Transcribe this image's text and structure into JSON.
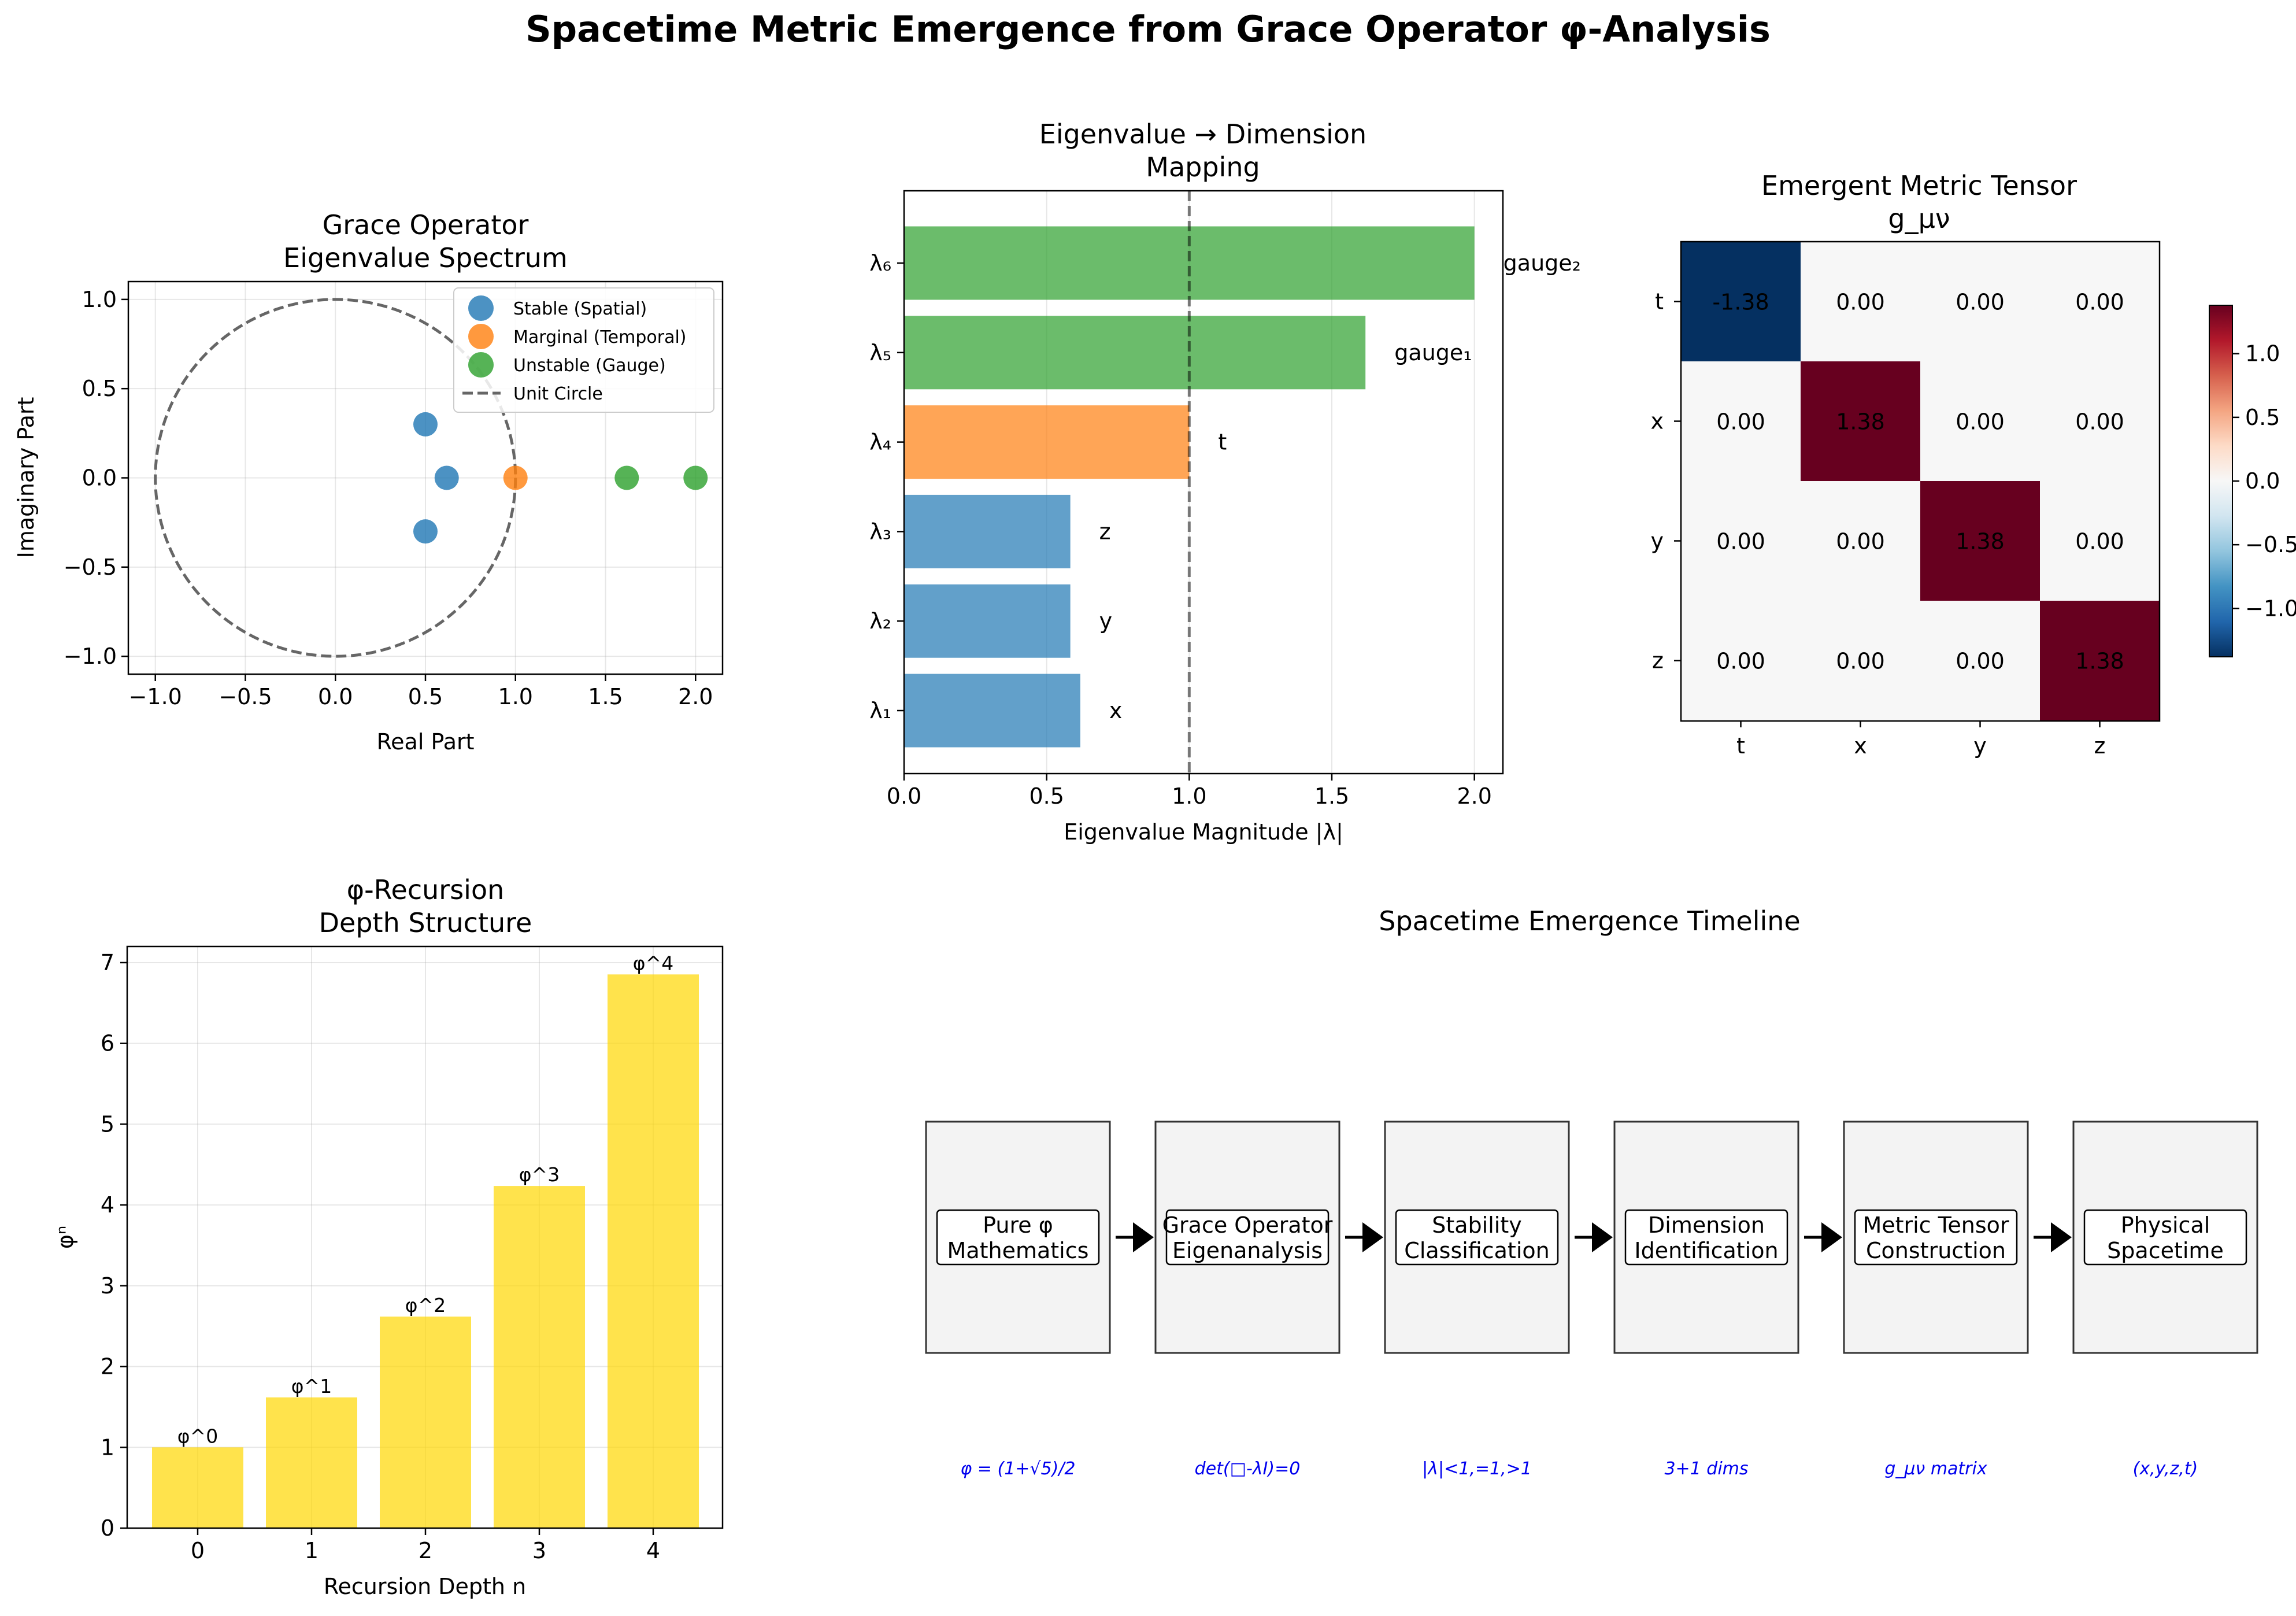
{
  "figure": {
    "title": "Spacetime Metric Emergence from Grace Operator φ-Analysis"
  },
  "chart_data": [
    {
      "type": "scatter",
      "title_lines": [
        "Grace Operator",
        "Eigenvalue Spectrum"
      ],
      "xlabel": "Real Part",
      "ylabel": "Imaginary Part",
      "xlim": [
        -1.15,
        2.15
      ],
      "ylim": [
        -1.1,
        1.1
      ],
      "xticks": [
        -1.0,
        -0.5,
        0.0,
        0.5,
        1.0,
        1.5,
        2.0
      ],
      "yticks": [
        -1.0,
        -0.5,
        0.0,
        0.5,
        1.0
      ],
      "tick_labels_x": [
        "−1.0",
        "−0.5",
        "0.0",
        "0.5",
        "1.0",
        "1.5",
        "2.0"
      ],
      "tick_labels_y": [
        "−1.0",
        "−0.5",
        "0.0",
        "0.5",
        "1.0"
      ],
      "grid": true,
      "legend_position": "top-right",
      "series": [
        {
          "name": "Stable (Spatial)",
          "color": "#1f77b4",
          "x": [
            0.5,
            0.618,
            0.5
          ],
          "y": [
            0.3,
            0.0,
            -0.3
          ]
        },
        {
          "name": "Marginal (Temporal)",
          "color": "#ff7f0e",
          "x": [
            1.0
          ],
          "y": [
            0.0
          ]
        },
        {
          "name": "Unstable (Gauge)",
          "color": "#2ca02c",
          "x": [
            1.618,
            2.0
          ],
          "y": [
            0.0,
            0.0
          ]
        }
      ],
      "reference_line": {
        "name": "Unit Circle",
        "shape": "circle",
        "radius": 1.0,
        "color": "#666666",
        "style": "dashed"
      }
    },
    {
      "type": "bar",
      "orientation": "horizontal",
      "title_lines": [
        "Eigenvalue → Dimension",
        "Mapping"
      ],
      "xlabel": "Eigenvalue Magnitude |λ|",
      "ylabel": "",
      "xlim": [
        0,
        2.1
      ],
      "xticks": [
        0.0,
        0.5,
        1.0,
        1.5,
        2.0
      ],
      "tick_labels_x": [
        "0.0",
        "0.5",
        "1.0",
        "1.5",
        "2.0"
      ],
      "grid": true,
      "categories": [
        "λ₁",
        "λ₂",
        "λ₃",
        "λ₄",
        "λ₅",
        "λ₆"
      ],
      "values": [
        0.618,
        0.583,
        0.583,
        1.0,
        1.618,
        2.0
      ],
      "bar_labels": [
        "x",
        "y",
        "z",
        "t",
        "gauge₁",
        "gauge₂"
      ],
      "colors": [
        "#1f77b4",
        "#1f77b4",
        "#1f77b4",
        "#ff7f0e",
        "#2ca02c",
        "#2ca02c"
      ],
      "reference_line": {
        "x": 1.0,
        "color": "#000000",
        "style": "dashed"
      }
    },
    {
      "type": "heatmap",
      "title_lines": [
        "Emergent Metric Tensor",
        "g_μν"
      ],
      "row_labels": [
        "t",
        "x",
        "y",
        "z"
      ],
      "col_labels": [
        "t",
        "x",
        "y",
        "z"
      ],
      "values": [
        [
          -1.38,
          0.0,
          0.0,
          0.0
        ],
        [
          0.0,
          1.38,
          0.0,
          0.0
        ],
        [
          0.0,
          0.0,
          1.38,
          0.0
        ],
        [
          0.0,
          0.0,
          0.0,
          1.38
        ]
      ],
      "cell_labels": [
        [
          "-1.38",
          "0.00",
          "0.00",
          "0.00"
        ],
        [
          "0.00",
          "1.38",
          "0.00",
          "0.00"
        ],
        [
          "0.00",
          "0.00",
          "1.38",
          "0.00"
        ],
        [
          "0.00",
          "0.00",
          "0.00",
          "1.38"
        ]
      ],
      "colormap": "RdBu_r",
      "vmin": -1.38,
      "vmax": 1.38,
      "colorbar_ticks": [
        1.0,
        0.5,
        0.0,
        -0.5,
        -1.0
      ],
      "colorbar_tick_labels": [
        "1.0",
        "0.5",
        "0.0",
        "−0.5",
        "−1.0"
      ]
    },
    {
      "type": "bar",
      "title_lines": [
        "φ-Recursion",
        "Depth Structure"
      ],
      "xlabel": "Recursion Depth n",
      "ylabel": "φⁿ",
      "ylim": [
        0,
        7.2
      ],
      "yticks": [
        0,
        1,
        2,
        3,
        4,
        5,
        6,
        7
      ],
      "tick_labels_y": [
        "0",
        "1",
        "2",
        "3",
        "4",
        "5",
        "6",
        "7"
      ],
      "grid": true,
      "categories": [
        "0",
        "1",
        "2",
        "3",
        "4"
      ],
      "values": [
        1.0,
        1.618,
        2.618,
        4.236,
        6.854
      ],
      "bar_labels": [
        "φ^0",
        "φ^1",
        "φ^2",
        "φ^3",
        "φ^4"
      ],
      "color": "#FFD700"
    },
    {
      "type": "table",
      "title": "Spacetime Emergence Timeline",
      "steps": [
        {
          "lines": [
            "Pure φ",
            "Mathematics"
          ],
          "formula": "φ = (1+√5)/2"
        },
        {
          "lines": [
            "Grace Operator",
            "Eigenanalysis"
          ],
          "formula": "det(□-λI)=0"
        },
        {
          "lines": [
            "Stability",
            "Classification"
          ],
          "formula": "|λ|<1,=1,>1"
        },
        {
          "lines": [
            "Dimension",
            "Identification"
          ],
          "formula": "3+1 dims"
        },
        {
          "lines": [
            "Metric Tensor",
            "Construction"
          ],
          "formula": "g_μν matrix"
        },
        {
          "lines": [
            "Physical",
            "Spacetime"
          ],
          "formula": "(x,y,z,t)"
        }
      ]
    }
  ]
}
